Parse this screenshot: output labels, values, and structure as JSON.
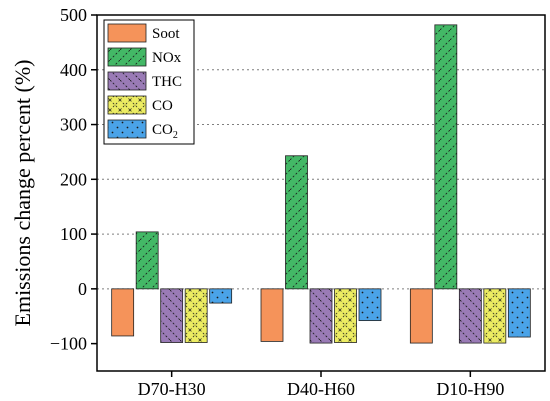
{
  "chart_data": {
    "type": "bar",
    "title": "",
    "xlabel": "",
    "ylabel": "Emissions change percent (%)",
    "ylim": [
      -150,
      500
    ],
    "yticks": [
      -100,
      0,
      100,
      200,
      300,
      400,
      500
    ],
    "categories": [
      "D70-H30",
      "D40-H60",
      "D10-H90"
    ],
    "series": [
      {
        "name": "Soot",
        "values": [
          -86,
          -96,
          -99
        ],
        "color": "#f5935a",
        "hatch": "none"
      },
      {
        "name": "NOx",
        "values": [
          104,
          243,
          482
        ],
        "color": "#43b866",
        "hatch": "diag-up"
      },
      {
        "name": "THC",
        "values": [
          -98,
          -99,
          -99
        ],
        "color": "#9a7bb6",
        "hatch": "diag-down"
      },
      {
        "name": "CO",
        "values": [
          -98,
          -98,
          -99
        ],
        "color": "#ecec62",
        "hatch": "cross"
      },
      {
        "name": "CO2",
        "name_sub": "2",
        "name_base": "CO",
        "values": [
          -26,
          -58,
          -88
        ],
        "color": "#4aa3e8",
        "hatch": "dots"
      }
    ],
    "grid": true,
    "legend": "top-left"
  }
}
